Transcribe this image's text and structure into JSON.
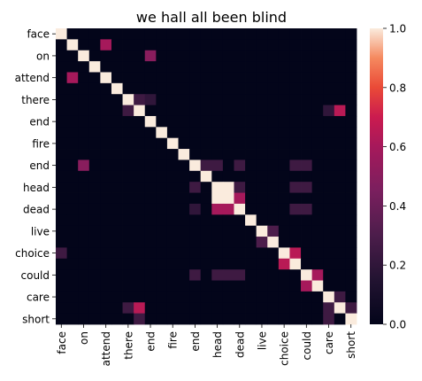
{
  "chart_data": {
    "type": "heatmap",
    "title": "we hall all been blind",
    "rows": [
      "face",
      "",
      "on",
      "",
      "attend",
      "",
      "there",
      "",
      "end",
      "",
      "fire",
      "",
      "end",
      "",
      "head",
      "",
      "dead",
      "",
      "live",
      "",
      "choice",
      "",
      "could",
      "",
      "care",
      "",
      "short"
    ],
    "columns": [
      "face",
      "",
      "on",
      "",
      "attend",
      "",
      "there",
      "",
      "end",
      "",
      "fire",
      "",
      "end",
      "",
      "head",
      "",
      "dead",
      "",
      "live",
      "",
      "choice",
      "",
      "could",
      "",
      "care",
      "",
      "short"
    ],
    "xticklabels": [
      "face",
      "on",
      "attend",
      "there",
      "end",
      "fire",
      "end",
      "head",
      "dead",
      "live",
      "choice",
      "could",
      "care",
      "short"
    ],
    "yticklabels": [
      "face",
      "on",
      "attend",
      "there",
      "end",
      "fire",
      "end",
      "head",
      "dead",
      "live",
      "choice",
      "could",
      "care",
      "short"
    ],
    "colorbar": {
      "min": 0.0,
      "max": 1.0,
      "ticks": [
        "0.0",
        "0.2",
        "0.4",
        "0.6",
        "0.8",
        "1.0"
      ]
    },
    "colormap": "rocket",
    "values": [
      [
        1,
        0,
        0,
        0,
        0,
        0,
        0,
        0,
        0,
        0,
        0,
        0,
        0,
        0,
        0,
        0,
        0,
        0,
        0,
        0,
        0,
        0,
        0,
        0,
        0,
        0,
        0
      ],
      [
        0,
        1,
        0,
        0,
        0.6,
        0,
        0,
        0,
        0,
        0,
        0,
        0,
        0,
        0,
        0,
        0,
        0,
        0,
        0,
        0,
        0,
        0,
        0,
        0,
        0,
        0,
        0
      ],
      [
        0,
        0,
        1,
        0,
        0,
        0,
        0,
        0,
        0.5,
        0,
        0,
        0,
        0,
        0,
        0,
        0,
        0,
        0,
        0,
        0,
        0,
        0,
        0,
        0,
        0,
        0,
        0
      ],
      [
        0,
        0,
        0,
        1,
        0,
        0,
        0,
        0,
        0,
        0,
        0,
        0,
        0,
        0,
        0,
        0,
        0,
        0,
        0,
        0,
        0,
        0,
        0,
        0,
        0,
        0,
        0
      ],
      [
        0,
        0.6,
        0,
        0,
        1,
        0,
        0,
        0,
        0,
        0,
        0,
        0,
        0,
        0,
        0,
        0,
        0,
        0,
        0,
        0,
        0,
        0,
        0,
        0,
        0,
        0,
        0
      ],
      [
        0,
        0,
        0,
        0,
        0,
        1,
        0,
        0,
        0,
        0,
        0,
        0,
        0,
        0,
        0,
        0,
        0,
        0,
        0,
        0,
        0,
        0,
        0,
        0,
        0,
        0,
        0
      ],
      [
        0,
        0,
        0,
        0,
        0,
        0,
        1,
        0.25,
        0.2,
        0,
        0,
        0,
        0,
        0,
        0,
        0,
        0,
        0,
        0,
        0,
        0,
        0,
        0,
        0,
        0,
        0,
        0
      ],
      [
        0,
        0,
        0,
        0,
        0,
        0,
        0.25,
        1,
        0,
        0,
        0,
        0,
        0,
        0,
        0,
        0,
        0,
        0,
        0,
        0,
        0,
        0,
        0,
        0,
        0.2,
        0.65,
        0
      ],
      [
        0,
        0,
        0,
        0,
        0,
        0,
        0,
        0,
        1,
        0,
        0,
        0,
        0,
        0,
        0,
        0,
        0,
        0,
        0,
        0,
        0,
        0,
        0,
        0,
        0,
        0,
        0
      ],
      [
        0,
        0,
        0,
        0,
        0,
        0,
        0,
        0,
        0,
        1,
        0,
        0,
        0,
        0,
        0,
        0,
        0,
        0,
        0,
        0,
        0,
        0,
        0,
        0,
        0,
        0,
        0
      ],
      [
        0,
        0,
        0,
        0,
        0,
        0,
        0,
        0,
        0,
        0,
        1,
        0,
        0,
        0,
        0,
        0,
        0,
        0,
        0,
        0,
        0,
        0,
        0,
        0,
        0,
        0,
        0
      ],
      [
        0,
        0,
        0,
        0,
        0,
        0,
        0,
        0,
        0,
        0,
        0,
        1,
        0,
        0,
        0,
        0,
        0,
        0,
        0,
        0,
        0,
        0,
        0,
        0,
        0,
        0,
        0
      ],
      [
        0,
        0,
        0.5,
        0,
        0,
        0,
        0,
        0,
        0,
        0,
        0,
        0,
        1,
        0.25,
        0.25,
        0,
        0.25,
        0,
        0,
        0,
        0,
        0.25,
        0.25,
        0,
        0,
        0,
        0
      ],
      [
        0,
        0,
        0,
        0,
        0,
        0,
        0,
        0,
        0,
        0,
        0,
        0,
        0,
        1,
        0,
        0,
        0,
        0,
        0,
        0,
        0,
        0,
        0,
        0,
        0,
        0,
        0
      ],
      [
        0,
        0,
        0,
        0,
        0,
        0,
        0,
        0,
        0,
        0,
        0,
        0,
        0.25,
        0,
        1,
        1,
        0.25,
        0,
        0,
        0,
        0,
        0.25,
        0.25,
        0,
        0,
        0,
        0
      ],
      [
        0,
        0,
        0,
        0,
        0,
        0,
        0,
        0,
        0,
        0,
        0,
        0,
        0,
        0,
        1,
        1,
        0.6,
        0,
        0,
        0,
        0,
        0,
        0,
        0,
        0,
        0,
        0
      ],
      [
        0,
        0,
        0,
        0,
        0,
        0,
        0,
        0,
        0,
        0,
        0,
        0,
        0.2,
        0,
        0.6,
        0.6,
        1,
        0,
        0,
        0,
        0,
        0.25,
        0.25,
        0,
        0,
        0,
        0
      ],
      [
        0,
        0,
        0,
        0,
        0,
        0,
        0,
        0,
        0,
        0,
        0,
        0,
        0,
        0,
        0,
        0,
        0,
        1,
        0,
        0,
        0,
        0,
        0,
        0,
        0,
        0,
        0
      ],
      [
        0,
        0,
        0,
        0,
        0,
        0,
        0,
        0,
        0,
        0,
        0,
        0,
        0,
        0,
        0,
        0,
        0,
        0,
        1,
        0.3,
        0,
        0,
        0,
        0,
        0,
        0,
        0
      ],
      [
        0,
        0,
        0,
        0,
        0,
        0,
        0,
        0,
        0,
        0,
        0,
        0,
        0,
        0,
        0,
        0,
        0,
        0,
        0.3,
        1,
        0,
        0,
        0,
        0,
        0,
        0,
        0
      ],
      [
        0.25,
        0,
        0,
        0,
        0,
        0,
        0,
        0,
        0,
        0,
        0,
        0,
        0,
        0,
        0,
        0,
        0,
        0,
        0,
        0,
        1,
        0.65,
        0,
        0,
        0,
        0,
        0
      ],
      [
        0,
        0,
        0,
        0,
        0,
        0,
        0,
        0,
        0,
        0,
        0,
        0,
        0,
        0,
        0,
        0,
        0,
        0,
        0,
        0,
        0.65,
        1,
        0,
        0,
        0,
        0,
        0
      ],
      [
        0,
        0,
        0,
        0,
        0,
        0,
        0,
        0,
        0,
        0,
        0,
        0,
        0.25,
        0,
        0.25,
        0.25,
        0.25,
        0,
        0,
        0,
        0,
        0,
        1,
        0.6,
        0,
        0,
        0
      ],
      [
        0,
        0,
        0,
        0,
        0,
        0,
        0,
        0,
        0,
        0,
        0,
        0,
        0,
        0,
        0,
        0,
        0,
        0,
        0,
        0,
        0,
        0,
        0.6,
        1,
        0,
        0,
        0
      ],
      [
        0,
        0,
        0,
        0,
        0,
        0,
        0,
        0,
        0,
        0,
        0,
        0,
        0,
        0,
        0,
        0,
        0,
        0,
        0,
        0,
        0,
        0,
        0,
        0,
        1,
        0.25,
        0
      ],
      [
        0,
        0,
        0,
        0,
        0,
        0,
        0.25,
        0.65,
        0,
        0,
        0,
        0,
        0,
        0,
        0,
        0,
        0,
        0,
        0,
        0,
        0,
        0,
        0,
        0,
        0.25,
        1,
        0.25
      ],
      [
        0,
        0,
        0,
        0,
        0,
        0,
        0,
        0.25,
        0,
        0,
        0,
        0,
        0,
        0,
        0,
        0,
        0,
        0,
        0,
        0,
        0,
        0,
        0,
        0,
        0.25,
        0,
        1
      ]
    ]
  }
}
